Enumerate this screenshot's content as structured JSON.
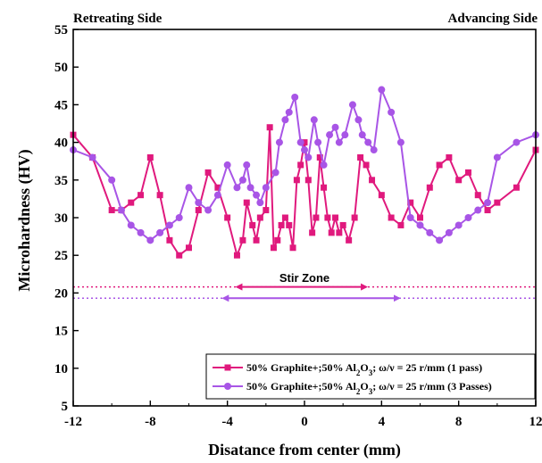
{
  "chart_data": {
    "type": "line",
    "xlabel": "Disatance from center (mm)",
    "ylabel": "Microhardness (HV)",
    "xlim": [
      -12,
      12
    ],
    "ylim": [
      5,
      55
    ],
    "xticks": [
      -12,
      -8,
      -4,
      0,
      4,
      8,
      12
    ],
    "yticks": [
      5,
      10,
      15,
      20,
      25,
      30,
      35,
      40,
      45,
      50,
      55
    ],
    "grid": false,
    "legend_position": "bottom-right",
    "annotations": {
      "left_corner": "Retreating Side",
      "right_corner": "Advancing Side",
      "zone_label": "Stir Zone"
    },
    "legend": [
      {
        "pre": "50% Graphite+;50% Al",
        "sub": "2",
        "mid": "O",
        "sub2": "3",
        "post": "; ω/ν = 25 r/mm (1 pass)"
      },
      {
        "pre": "50% Graphite+;50% Al",
        "sub": "2",
        "mid": "O",
        "sub2": "3",
        "post": "; ω/ν = 25 r/mm (3 Passes)"
      }
    ],
    "series": [
      {
        "name": "50% Graphite+;50% Al2O3; ω/ν = 25 r/mm (1 pass)",
        "color": "#e0197d",
        "marker": "square",
        "points": [
          [
            -12,
            41
          ],
          [
            -11,
            38
          ],
          [
            -10,
            31
          ],
          [
            -9.5,
            31
          ],
          [
            -9,
            32
          ],
          [
            -8.5,
            33
          ],
          [
            -8,
            38
          ],
          [
            -7.5,
            33
          ],
          [
            -7,
            27
          ],
          [
            -6.5,
            25
          ],
          [
            -6,
            26
          ],
          [
            -5.5,
            31
          ],
          [
            -5,
            36
          ],
          [
            -4.5,
            34
          ],
          [
            -4,
            30
          ],
          [
            -3.5,
            25
          ],
          [
            -3.2,
            27
          ],
          [
            -3,
            32
          ],
          [
            -2.7,
            29
          ],
          [
            -2.5,
            27
          ],
          [
            -2.3,
            30
          ],
          [
            -2,
            31
          ],
          [
            -1.8,
            42
          ],
          [
            -1.6,
            26
          ],
          [
            -1.4,
            27
          ],
          [
            -1.2,
            29
          ],
          [
            -1,
            30
          ],
          [
            -0.8,
            29
          ],
          [
            -0.6,
            26
          ],
          [
            -0.4,
            35
          ],
          [
            -0.2,
            37
          ],
          [
            0,
            40
          ],
          [
            0.2,
            35
          ],
          [
            0.4,
            28
          ],
          [
            0.6,
            30
          ],
          [
            0.8,
            38
          ],
          [
            1,
            34
          ],
          [
            1.2,
            30
          ],
          [
            1.4,
            28
          ],
          [
            1.6,
            30
          ],
          [
            1.8,
            28
          ],
          [
            2,
            29
          ],
          [
            2.3,
            27
          ],
          [
            2.6,
            30
          ],
          [
            2.9,
            38
          ],
          [
            3.2,
            37
          ],
          [
            3.5,
            35
          ],
          [
            4,
            33
          ],
          [
            4.5,
            30
          ],
          [
            5,
            29
          ],
          [
            5.5,
            32
          ],
          [
            6,
            30
          ],
          [
            6.5,
            34
          ],
          [
            7,
            37
          ],
          [
            7.5,
            38
          ],
          [
            8,
            35
          ],
          [
            8.5,
            36
          ],
          [
            9,
            33
          ],
          [
            9.5,
            31
          ],
          [
            10,
            32
          ],
          [
            11,
            34
          ],
          [
            12,
            39
          ]
        ]
      },
      {
        "name": "50% Graphite+;50% Al2O3; ω/ν = 25 r/mm (3 Passes)",
        "color": "#a855e6",
        "marker": "circle",
        "points": [
          [
            -12,
            39
          ],
          [
            -11,
            38
          ],
          [
            -10,
            35
          ],
          [
            -9.5,
            31
          ],
          [
            -9,
            29
          ],
          [
            -8.5,
            28
          ],
          [
            -8,
            27
          ],
          [
            -7.5,
            28
          ],
          [
            -7,
            29
          ],
          [
            -6.5,
            30
          ],
          [
            -6,
            34
          ],
          [
            -5.5,
            32
          ],
          [
            -5,
            31
          ],
          [
            -4.5,
            33
          ],
          [
            -4,
            37
          ],
          [
            -3.5,
            34
          ],
          [
            -3.2,
            35
          ],
          [
            -3,
            37
          ],
          [
            -2.8,
            34
          ],
          [
            -2.5,
            33
          ],
          [
            -2.3,
            32
          ],
          [
            -2,
            34
          ],
          [
            -1.5,
            36
          ],
          [
            -1.3,
            40
          ],
          [
            -1,
            43
          ],
          [
            -0.8,
            44
          ],
          [
            -0.5,
            46
          ],
          [
            -0.2,
            40
          ],
          [
            0,
            39
          ],
          [
            0.2,
            38
          ],
          [
            0.5,
            43
          ],
          [
            0.7,
            40
          ],
          [
            1,
            37
          ],
          [
            1.3,
            41
          ],
          [
            1.6,
            42
          ],
          [
            1.8,
            40
          ],
          [
            2.1,
            41
          ],
          [
            2.5,
            45
          ],
          [
            2.8,
            43
          ],
          [
            3,
            41
          ],
          [
            3.3,
            40
          ],
          [
            3.6,
            39
          ],
          [
            4,
            47
          ],
          [
            4.5,
            44
          ],
          [
            5,
            40
          ],
          [
            5.5,
            30
          ],
          [
            6,
            29
          ],
          [
            6.5,
            28
          ],
          [
            7,
            27
          ],
          [
            7.5,
            28
          ],
          [
            8,
            29
          ],
          [
            8.5,
            30
          ],
          [
            9,
            31
          ],
          [
            9.5,
            32
          ],
          [
            10,
            38
          ],
          [
            11,
            40
          ],
          [
            12,
            41
          ]
        ]
      }
    ]
  }
}
